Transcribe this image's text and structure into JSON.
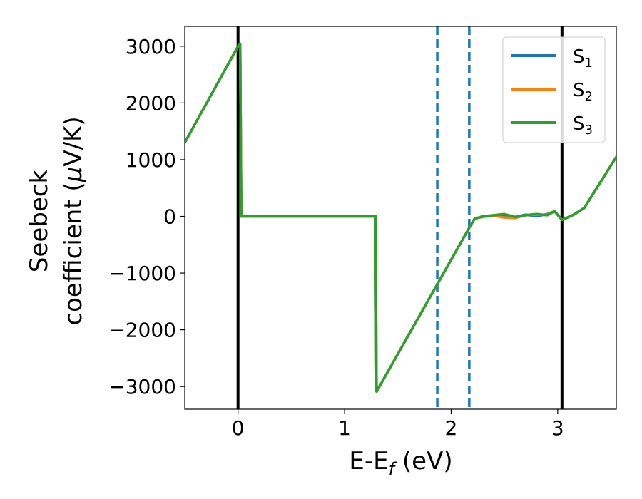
{
  "chart_data": {
    "type": "line",
    "xlabel_main": "E-E",
    "xlabel_sub": "f",
    "xlabel_unit": " (eV)",
    "ylabel_line1": "Seebeck",
    "ylabel_line2_prefix": "coefficient  (",
    "ylabel_mu": "μ",
    "ylabel_line2_suffix": "V/K)",
    "xlim": [
      -0.5,
      3.55
    ],
    "ylim": [
      -3400,
      3350
    ],
    "xticks": [
      0,
      1,
      2,
      3
    ],
    "xtick_labels": [
      "0",
      "1",
      "2",
      "3"
    ],
    "yticks": [
      3000,
      2000,
      1000,
      0,
      -1000,
      -2000,
      -3000
    ],
    "ytick_labels": [
      "3000",
      "2000",
      "1000",
      "0",
      "−1000",
      "−2000",
      "−3000"
    ],
    "grid": false,
    "legend_position": "top-right",
    "vlines": [
      {
        "x": 0.0,
        "style": "solid",
        "color": "#000000"
      },
      {
        "x": 3.04,
        "style": "solid",
        "color": "#000000"
      },
      {
        "x": 1.87,
        "style": "dashed",
        "color": "#1f77b4"
      },
      {
        "x": 2.17,
        "style": "dashed",
        "color": "#1f77b4"
      }
    ],
    "series": [
      {
        "name": "S",
        "sub": "1",
        "color": "#1f77b4",
        "x": [
          -0.5,
          0.0,
          0.02,
          0.03,
          1.29,
          1.3,
          2.17,
          2.22,
          2.3,
          2.4,
          2.5,
          2.6,
          2.7,
          2.8,
          2.9,
          2.97,
          3.04,
          3.08,
          3.15,
          3.25,
          3.55
        ],
        "y": [
          1300,
          3000,
          3040,
          0,
          0,
          -3090,
          -200,
          -40,
          0,
          10,
          20,
          -10,
          30,
          0,
          40,
          90,
          -60,
          -30,
          30,
          150,
          1050
        ]
      },
      {
        "name": "S",
        "sub": "2",
        "color": "#ff7f0e",
        "x": [
          -0.5,
          0.0,
          0.02,
          0.03,
          1.29,
          1.3,
          2.17,
          2.22,
          2.3,
          2.4,
          2.5,
          2.6,
          2.7,
          2.8,
          2.9,
          2.97,
          3.04,
          3.08,
          3.15,
          3.25,
          3.55
        ],
        "y": [
          1300,
          3000,
          3040,
          0,
          0,
          -3090,
          -200,
          -40,
          -10,
          10,
          -20,
          -30,
          20,
          30,
          30,
          90,
          -60,
          -30,
          30,
          150,
          1050
        ]
      },
      {
        "name": "S",
        "sub": "3",
        "color": "#2ca02c",
        "x": [
          -0.5,
          0.0,
          0.02,
          0.03,
          1.29,
          1.3,
          2.17,
          2.22,
          2.3,
          2.4,
          2.5,
          2.6,
          2.7,
          2.8,
          2.9,
          2.97,
          3.04,
          3.08,
          3.15,
          3.25,
          3.55
        ],
        "y": [
          1300,
          3000,
          3040,
          0,
          0,
          -3090,
          -200,
          -40,
          0,
          20,
          40,
          -10,
          20,
          40,
          20,
          90,
          -60,
          -30,
          30,
          150,
          1050
        ]
      }
    ]
  }
}
